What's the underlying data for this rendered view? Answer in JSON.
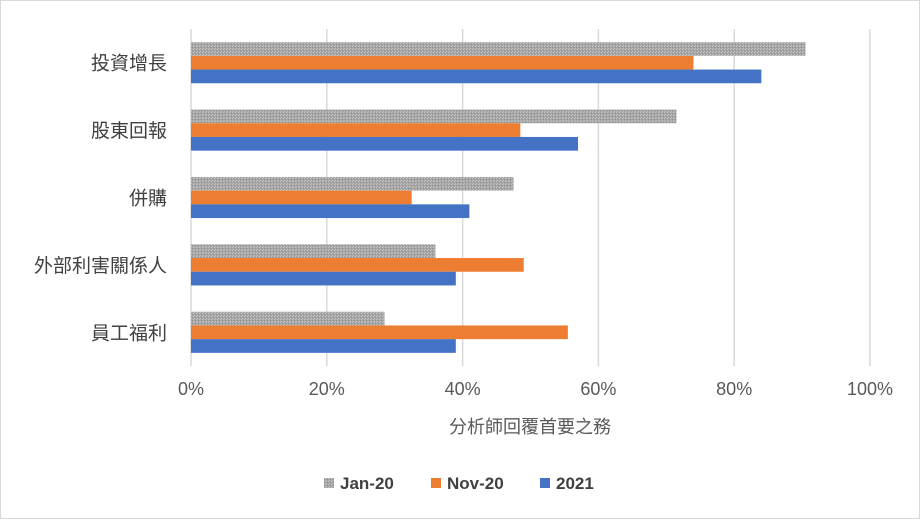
{
  "chart_data": {
    "type": "bar",
    "orientation": "horizontal",
    "categories": [
      "投資增長",
      "股東回報",
      "併購",
      "外部利害關係人",
      "員工福利"
    ],
    "series": [
      {
        "name": "Jan-20",
        "values": [
          90.5,
          71.5,
          47.5,
          36,
          28.5
        ],
        "color": "#a5a5a5"
      },
      {
        "name": "Nov-20",
        "values": [
          74,
          48.5,
          32.5,
          49,
          55.5
        ],
        "color": "#ed7d31"
      },
      {
        "name": "2021",
        "values": [
          84,
          57,
          41,
          39,
          39
        ],
        "color": "#4472c4"
      }
    ],
    "xlim": [
      0,
      100
    ],
    "xticks": [
      0,
      20,
      40,
      60,
      80,
      100
    ],
    "xtick_labels": [
      "0%",
      "20%",
      "40%",
      "60%",
      "80%",
      "100%"
    ],
    "xlabel": "分析師回覆首要之務",
    "ylabel": "",
    "title": "",
    "grid": "vertical",
    "legend_position": "bottom"
  }
}
